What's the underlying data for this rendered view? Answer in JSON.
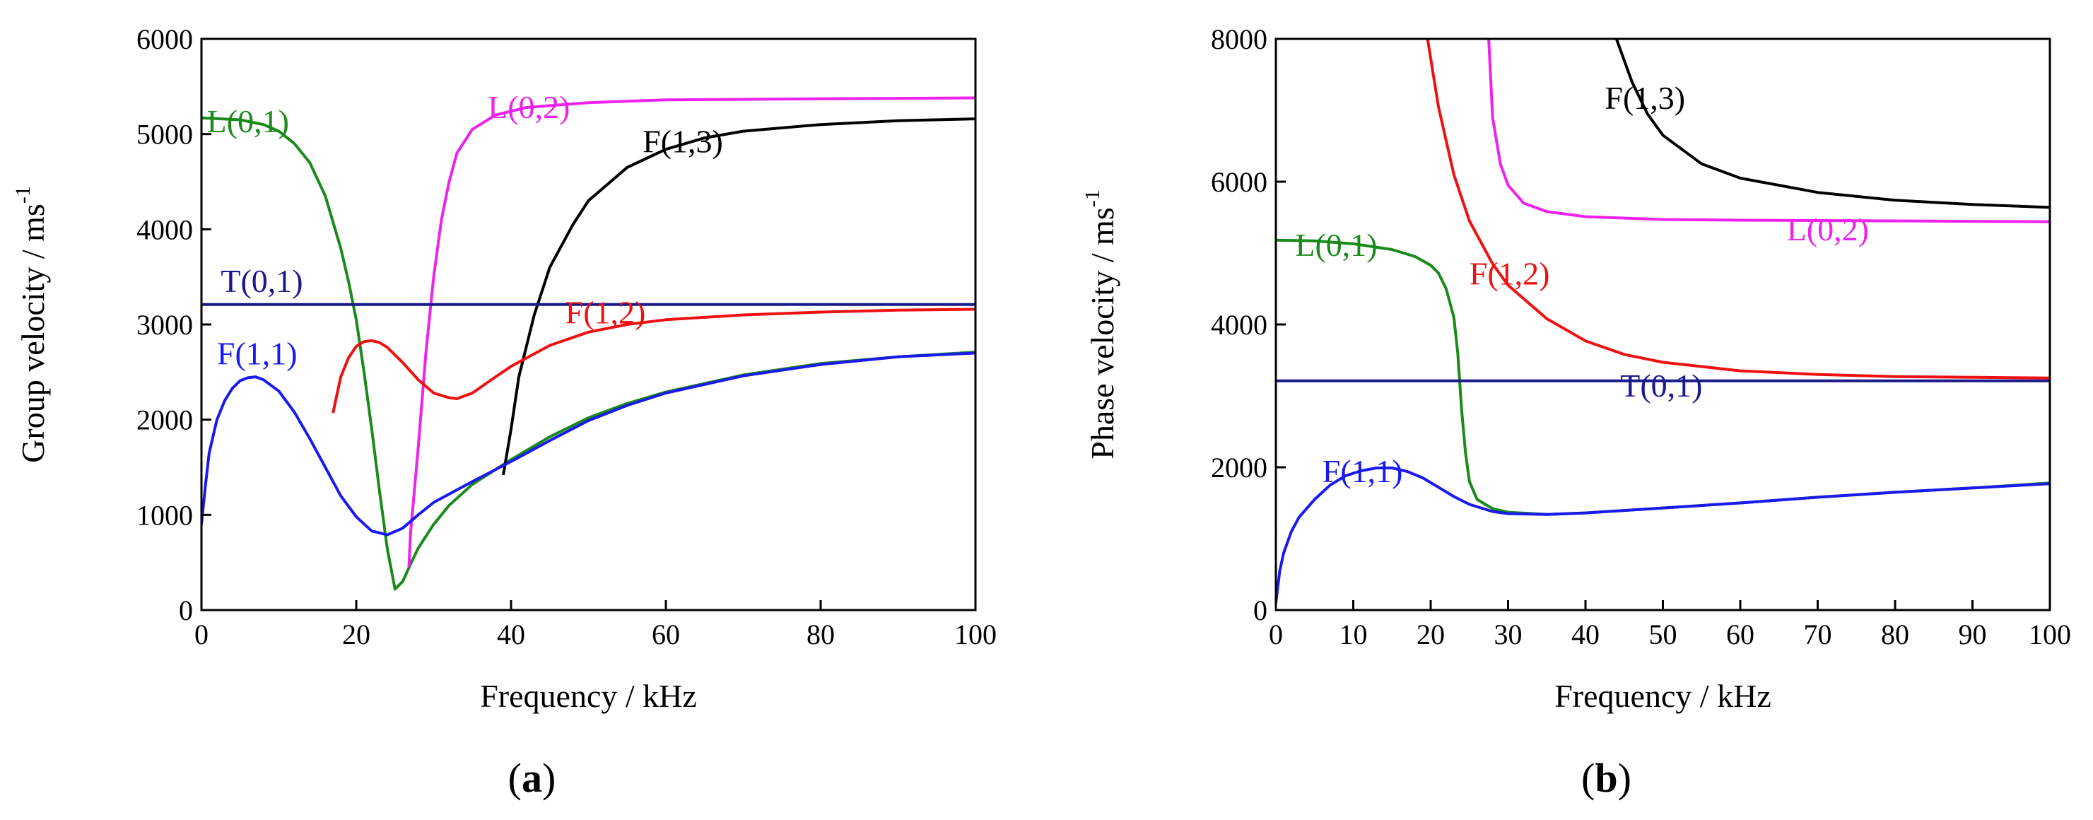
{
  "chart_data": [
    {
      "id": "a",
      "type": "line",
      "panel_label": "a",
      "xlabel": "Frequency / kHz",
      "ylabel": "Group velocity / ms",
      "ylabel_sup": "-1",
      "xlim": [
        0,
        100
      ],
      "ylim": [
        0,
        6000
      ],
      "xticks": [
        0,
        20,
        40,
        60,
        80,
        100
      ],
      "yticks": [
        0,
        1000,
        2000,
        3000,
        4000,
        5000,
        6000
      ],
      "series": [
        {
          "name": "L(0,1)",
          "color": "#1a8a1a",
          "points": [
            [
              0,
              5170
            ],
            [
              5,
              5150
            ],
            [
              8,
              5100
            ],
            [
              10,
              5030
            ],
            [
              12,
              4900
            ],
            [
              14,
              4700
            ],
            [
              16,
              4350
            ],
            [
              18,
              3800
            ],
            [
              19,
              3450
            ],
            [
              20,
              3050
            ],
            [
              21,
              2500
            ],
            [
              22,
              1900
            ],
            [
              23,
              1250
            ],
            [
              24,
              650
            ],
            [
              25,
              220
            ],
            [
              26,
              300
            ],
            [
              27,
              480
            ],
            [
              28,
              650
            ],
            [
              30,
              900
            ],
            [
              32,
              1100
            ],
            [
              35,
              1320
            ],
            [
              40,
              1580
            ],
            [
              45,
              1820
            ],
            [
              50,
              2020
            ],
            [
              55,
              2170
            ],
            [
              60,
              2290
            ],
            [
              70,
              2470
            ],
            [
              80,
              2590
            ],
            [
              90,
              2660
            ],
            [
              100,
              2710
            ]
          ]
        },
        {
          "name": "L(0,2)",
          "color": "#ee22ee",
          "points": [
            [
              26.8,
              450
            ],
            [
              27,
              800
            ],
            [
              28,
              1700
            ],
            [
              29,
              2700
            ],
            [
              30,
              3500
            ],
            [
              31,
              4100
            ],
            [
              32,
              4500
            ],
            [
              33,
              4800
            ],
            [
              35,
              5050
            ],
            [
              38,
              5200
            ],
            [
              42,
              5280
            ],
            [
              50,
              5330
            ],
            [
              60,
              5360
            ],
            [
              80,
              5370
            ],
            [
              100,
              5380
            ]
          ]
        },
        {
          "name": "F(1,3)",
          "color": "#000000",
          "points": [
            [
              39,
              1420
            ],
            [
              40,
              1900
            ],
            [
              41,
              2450
            ],
            [
              43,
              3100
            ],
            [
              45,
              3600
            ],
            [
              48,
              4050
            ],
            [
              50,
              4300
            ],
            [
              55,
              4650
            ],
            [
              60,
              4840
            ],
            [
              65,
              4960
            ],
            [
              70,
              5030
            ],
            [
              80,
              5100
            ],
            [
              90,
              5140
            ],
            [
              100,
              5160
            ]
          ]
        },
        {
          "name": "T(0,1)",
          "color": "#1a1a8c",
          "points": [
            [
              0,
              3210
            ],
            [
              100,
              3210
            ]
          ]
        },
        {
          "name": "F(1,2)",
          "color": "#ee1111",
          "points": [
            [
              17,
              2070
            ],
            [
              18,
              2450
            ],
            [
              19,
              2650
            ],
            [
              20,
              2770
            ],
            [
              21,
              2820
            ],
            [
              22,
              2830
            ],
            [
              23,
              2810
            ],
            [
              24,
              2760
            ],
            [
              26,
              2600
            ],
            [
              28,
              2420
            ],
            [
              30,
              2280
            ],
            [
              32,
              2230
            ],
            [
              33,
              2220
            ],
            [
              35,
              2280
            ],
            [
              38,
              2450
            ],
            [
              40,
              2560
            ],
            [
              45,
              2780
            ],
            [
              50,
              2920
            ],
            [
              55,
              3000
            ],
            [
              60,
              3050
            ],
            [
              70,
              3100
            ],
            [
              80,
              3130
            ],
            [
              90,
              3150
            ],
            [
              100,
              3160
            ]
          ]
        },
        {
          "name": "F(1,1)",
          "color": "#1a1aee",
          "points": [
            [
              0,
              900
            ],
            [
              0.5,
              1300
            ],
            [
              1,
              1650
            ],
            [
              2,
              2000
            ],
            [
              3,
              2200
            ],
            [
              4,
              2330
            ],
            [
              5,
              2410
            ],
            [
              6,
              2440
            ],
            [
              7,
              2450
            ],
            [
              8,
              2420
            ],
            [
              10,
              2300
            ],
            [
              12,
              2080
            ],
            [
              14,
              1800
            ],
            [
              16,
              1500
            ],
            [
              18,
              1200
            ],
            [
              20,
              980
            ],
            [
              22,
              830
            ],
            [
              24,
              790
            ],
            [
              26,
              860
            ],
            [
              28,
              1000
            ],
            [
              30,
              1130
            ],
            [
              35,
              1350
            ],
            [
              40,
              1560
            ],
            [
              45,
              1780
            ],
            [
              50,
              1990
            ],
            [
              55,
              2150
            ],
            [
              60,
              2280
            ],
            [
              70,
              2460
            ],
            [
              80,
              2580
            ],
            [
              90,
              2660
            ],
            [
              100,
              2700
            ]
          ]
        }
      ],
      "annotations": [
        {
          "text": "L(0,1)",
          "x": 0.7,
          "y": 5020,
          "color": "#1a8a1a"
        },
        {
          "text": "L(0,2)",
          "x": 37,
          "y": 5170,
          "color": "#ee22ee"
        },
        {
          "text": "F(1,3)",
          "x": 57,
          "y": 4810,
          "color": "#000000"
        },
        {
          "text": "T(0,1)",
          "x": 2.5,
          "y": 3340,
          "color": "#1a1a8c"
        },
        {
          "text": "F(1,2)",
          "x": 47,
          "y": 3010,
          "color": "#ee1111"
        },
        {
          "text": "F(1,1)",
          "x": 2,
          "y": 2580,
          "color": "#1a1aee"
        }
      ]
    },
    {
      "id": "b",
      "type": "line",
      "panel_label": "b",
      "xlabel": "Frequency / kHz",
      "ylabel": "Phase velocity / ms",
      "ylabel_sup": "-1",
      "xlim": [
        0,
        100
      ],
      "ylim": [
        0,
        8000
      ],
      "xticks": [
        0,
        10,
        20,
        30,
        40,
        50,
        60,
        70,
        80,
        90,
        100
      ],
      "yticks": [
        0,
        2000,
        4000,
        6000,
        8000
      ],
      "series": [
        {
          "name": "F(1,3)",
          "color": "#000000",
          "points": [
            [
              44,
              8000
            ],
            [
              46,
              7400
            ],
            [
              48,
              6950
            ],
            [
              50,
              6650
            ],
            [
              55,
              6250
            ],
            [
              60,
              6050
            ],
            [
              70,
              5850
            ],
            [
              80,
              5740
            ],
            [
              90,
              5680
            ],
            [
              100,
              5640
            ]
          ]
        },
        {
          "name": "L(0,2)",
          "color": "#ee22ee",
          "points": [
            [
              27.5,
              8000
            ],
            [
              28,
              6900
            ],
            [
              29,
              6250
            ],
            [
              30,
              5950
            ],
            [
              32,
              5700
            ],
            [
              35,
              5580
            ],
            [
              40,
              5510
            ],
            [
              50,
              5470
            ],
            [
              60,
              5460
            ],
            [
              80,
              5450
            ],
            [
              100,
              5440
            ]
          ]
        },
        {
          "name": "F(1,2)",
          "color": "#ee1111",
          "points": [
            [
              19.6,
              8000
            ],
            [
              21,
              7050
            ],
            [
              23,
              6100
            ],
            [
              25,
              5450
            ],
            [
              28,
              4850
            ],
            [
              30,
              4550
            ],
            [
              35,
              4080
            ],
            [
              40,
              3770
            ],
            [
              45,
              3580
            ],
            [
              50,
              3470
            ],
            [
              60,
              3350
            ],
            [
              70,
              3300
            ],
            [
              80,
              3270
            ],
            [
              90,
              3260
            ],
            [
              100,
              3250
            ]
          ]
        },
        {
          "name": "L(0,1)",
          "color": "#1a8a1a",
          "points": [
            [
              0,
              5180
            ],
            [
              5,
              5170
            ],
            [
              10,
              5130
            ],
            [
              15,
              5050
            ],
            [
              18,
              4950
            ],
            [
              20,
              4830
            ],
            [
              21,
              4720
            ],
            [
              22,
              4500
            ],
            [
              23,
              4100
            ],
            [
              23.5,
              3600
            ],
            [
              24,
              2800
            ],
            [
              24.5,
              2200
            ],
            [
              25,
              1800
            ],
            [
              26,
              1550
            ],
            [
              28,
              1420
            ],
            [
              30,
              1370
            ],
            [
              35,
              1340
            ],
            [
              40,
              1360
            ],
            [
              50,
              1430
            ],
            [
              60,
              1500
            ],
            [
              70,
              1580
            ],
            [
              80,
              1650
            ],
            [
              90,
              1710
            ],
            [
              100,
              1780
            ]
          ]
        },
        {
          "name": "T(0,1)",
          "color": "#1a1a8c",
          "points": [
            [
              0,
              3210
            ],
            [
              100,
              3210
            ]
          ]
        },
        {
          "name": "F(1,1)",
          "color": "#1a1aee",
          "points": [
            [
              0,
              100
            ],
            [
              0.5,
              550
            ],
            [
              1,
              800
            ],
            [
              2,
              1100
            ],
            [
              3,
              1300
            ],
            [
              5,
              1550
            ],
            [
              7,
              1750
            ],
            [
              9,
              1880
            ],
            [
              11,
              1950
            ],
            [
              13,
              1990
            ],
            [
              15,
              1990
            ],
            [
              17,
              1940
            ],
            [
              19,
              1850
            ],
            [
              21,
              1720
            ],
            [
              23,
              1590
            ],
            [
              25,
              1480
            ],
            [
              28,
              1380
            ],
            [
              30,
              1350
            ],
            [
              35,
              1340
            ],
            [
              40,
              1360
            ],
            [
              50,
              1430
            ],
            [
              60,
              1500
            ],
            [
              70,
              1580
            ],
            [
              80,
              1650
            ],
            [
              90,
              1710
            ],
            [
              100,
              1770
            ]
          ]
        }
      ],
      "annotations": [
        {
          "text": "F(1,3)",
          "x": 42.5,
          "y": 7020,
          "color": "#000000"
        },
        {
          "text": "L(0,2)",
          "x": 66,
          "y": 5180,
          "color": "#ee22ee"
        },
        {
          "text": "L(0,1)",
          "x": 2.5,
          "y": 4960,
          "color": "#1a8a1a"
        },
        {
          "text": "F(1,2)",
          "x": 25,
          "y": 4560,
          "color": "#ee1111"
        },
        {
          "text": "T(0,1)",
          "x": 44.5,
          "y": 2990,
          "color": "#1a1a8c"
        },
        {
          "text": "F(1,1)",
          "x": 6,
          "y": 1790,
          "color": "#1a1aee"
        }
      ]
    }
  ]
}
